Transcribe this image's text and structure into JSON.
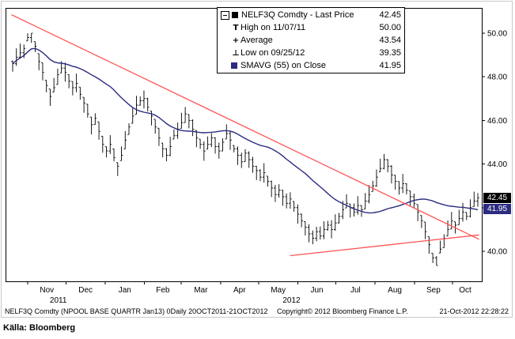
{
  "caption": "Källa: Bloomberg",
  "footer": {
    "left": "NELF3Q Comdty (NPOOL BASE QUARTR Jan13) 0Daily 20OCT2011-21OCT2012",
    "center": "Copyright© 2012 Bloomberg Finance L.P.",
    "right": "21-Oct-2012 22:28:22"
  },
  "legend": {
    "rows": [
      {
        "icon": "black-square",
        "collapse": true,
        "label": "NELF3Q Comdty - Last Price",
        "value": "42.45"
      },
      {
        "icon": "high-tick",
        "label": "High on 11/07/11",
        "value": "50.00"
      },
      {
        "icon": "avg-cross",
        "label": "Average",
        "value": "43.54"
      },
      {
        "icon": "low-tick",
        "label": "Low on 09/25/12",
        "value": "39.35"
      },
      {
        "icon": "navy-square",
        "label": "SMAVG (55) on Close",
        "value": "41.95"
      }
    ]
  },
  "chart_data": {
    "type": "ohlc",
    "instrument": "NELF3Q Comdty",
    "title": "NELF3Q Comdty - Last Price",
    "last_price": 42.45,
    "high_date": "11/07/11",
    "high": 50.0,
    "average": 43.54,
    "low_date": "09/25/12",
    "low": 39.35,
    "smavg": {
      "label": "SMAVG (55) on Close",
      "period": 55,
      "value": 41.95,
      "window_points": 27
    },
    "ylim": [
      39.0,
      51.2
    ],
    "yticks": [
      40,
      42,
      44,
      46,
      48,
      50
    ],
    "x_axis": {
      "end_day": 367,
      "months": [
        {
          "label": "Nov",
          "day": 12
        },
        {
          "label": "Dec",
          "day": 42
        },
        {
          "label": "Jan",
          "day": 73
        },
        {
          "label": "Feb",
          "day": 104
        },
        {
          "label": "Mar",
          "day": 133
        },
        {
          "label": "Apr",
          "day": 164
        },
        {
          "label": "May",
          "day": 194
        },
        {
          "label": "Jun",
          "day": 225
        },
        {
          "label": "Jul",
          "day": 255
        },
        {
          "label": "Aug",
          "day": 286
        },
        {
          "label": "Sep",
          "day": 317
        },
        {
          "label": "Oct",
          "day": 347
        }
      ],
      "years": [
        {
          "label": "2011",
          "center_day": 36
        },
        {
          "label": "2012",
          "center_day": 220
        }
      ]
    },
    "axis_badges": [
      {
        "name": "last-price-badge",
        "value": "42.45",
        "color": "#000000"
      },
      {
        "name": "smavg-badge",
        "value": "41.95",
        "color": "#2b2b80"
      }
    ],
    "colors": {
      "bars": "#000000",
      "smavg": "#2b2b80",
      "trend": "#ff5252"
    },
    "trendlines": [
      {
        "from_day": -1,
        "from_price": 50.85,
        "to_day": 368,
        "to_price": 40.55
      },
      {
        "from_day": 219,
        "from_price": 39.8,
        "to_day": 368,
        "to_price": 40.75
      }
    ],
    "closes": [
      48.6,
      48.9,
      49.1,
      49.3,
      49.8,
      50.0,
      49.4,
      48.7,
      48.2,
      47.6,
      47.1,
      47.5,
      48.1,
      48.4,
      48.2,
      47.8,
      47.5,
      47.7,
      47.2,
      46.8,
      46.3,
      45.8,
      46.1,
      45.5,
      44.9,
      44.6,
      44.9,
      44.3,
      43.9,
      44.4,
      45.1,
      45.7,
      46.2,
      46.7,
      46.9,
      47.0,
      46.6,
      46.2,
      45.7,
      45.2,
      44.7,
      44.4,
      44.8,
      45.3,
      45.6,
      45.9,
      46.3,
      46.0,
      45.6,
      45.2,
      44.9,
      44.6,
      44.9,
      45.2,
      44.8,
      44.6,
      45.0,
      45.4,
      45.1,
      44.7,
      44.4,
      44.1,
      44.5,
      44.2,
      43.9,
      43.7,
      43.4,
      43.6,
      43.2,
      42.9,
      42.6,
      42.8,
      42.5,
      42.2,
      42.4,
      42.0,
      41.7,
      41.4,
      41.1,
      40.8,
      40.6,
      40.9,
      40.7,
      41.0,
      41.2,
      41.0,
      41.3,
      41.6,
      41.9,
      42.2,
      42.0,
      41.8,
      42.1,
      41.9,
      42.3,
      42.6,
      43.0,
      43.4,
      43.8,
      44.2,
      43.9,
      43.5,
      43.2,
      42.9,
      43.1,
      42.8,
      42.5,
      42.2,
      41.8,
      41.4,
      40.9,
      40.3,
      39.7,
      39.35,
      40.1,
      40.6,
      41.0,
      41.4,
      41.2,
      41.5,
      41.8,
      41.6,
      42.0,
      42.3,
      42.45
    ]
  }
}
